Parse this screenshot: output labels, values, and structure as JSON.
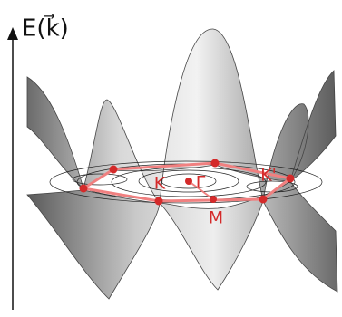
{
  "axis_label": "E(k⃗)",
  "points": [
    {
      "label": "K"
    },
    {
      "label": "Γ"
    },
    {
      "label": "M"
    },
    {
      "label": "K'"
    }
  ]
}
